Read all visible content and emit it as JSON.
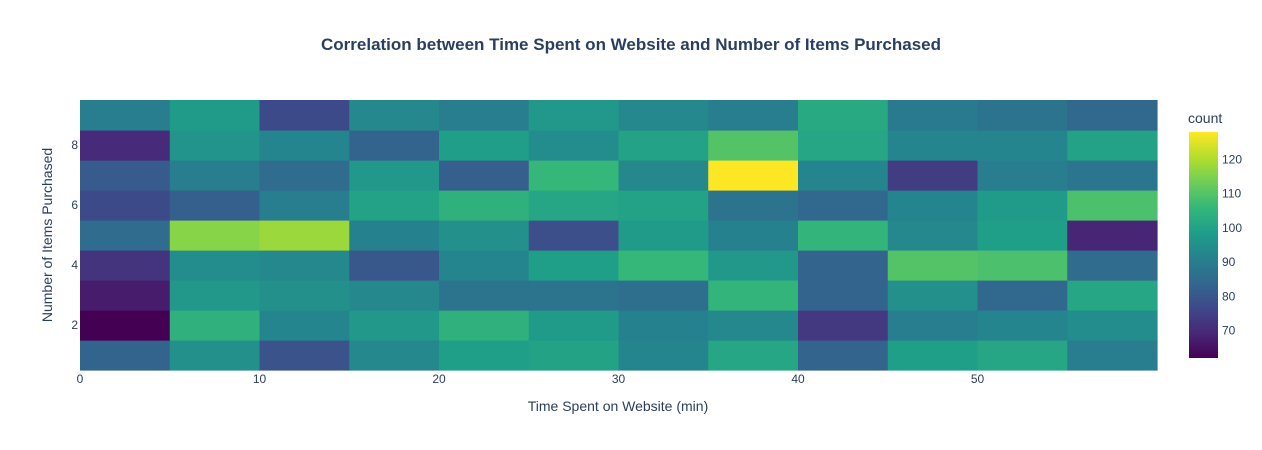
{
  "chart_data": {
    "type": "heatmap",
    "title": "Correlation between Time Spent on Website and Number of Items Purchased",
    "xlabel": "Time Spent on Website (min)",
    "ylabel": "Number of Items Purchased",
    "x_bin_edges": [
      0,
      5,
      10,
      15,
      20,
      25,
      30,
      35,
      40,
      45,
      50,
      55,
      60
    ],
    "y_bin_edges": [
      0,
      1,
      2,
      3,
      4,
      5,
      6,
      7,
      8,
      9
    ],
    "xlim": [
      0,
      60
    ],
    "ylim": [
      0,
      9
    ],
    "x_ticks": [
      0,
      10,
      20,
      30,
      40,
      50
    ],
    "y_ticks": [
      2,
      4,
      6,
      8
    ],
    "values": [
      [
        83,
        95,
        79,
        93,
        99,
        100,
        92,
        101,
        83,
        99,
        101,
        90
      ],
      [
        62,
        104,
        92,
        97,
        104,
        98,
        91,
        93,
        73,
        90,
        92,
        94
      ],
      [
        67,
        97,
        95,
        93,
        87,
        87,
        86,
        105,
        83,
        95,
        84,
        101
      ],
      [
        72,
        94,
        93,
        80,
        92,
        99,
        106,
        97,
        83,
        110,
        109,
        85
      ],
      [
        85,
        116,
        118,
        91,
        95,
        78,
        98,
        91,
        105,
        93,
        99,
        69
      ],
      [
        77,
        82,
        90,
        100,
        104,
        101,
        100,
        87,
        84,
        92,
        98,
        109
      ],
      [
        81,
        90,
        85,
        97,
        82,
        106,
        93,
        128,
        92,
        74,
        90,
        88
      ],
      [
        70,
        96,
        92,
        83,
        99,
        94,
        100,
        110,
        101,
        92,
        92,
        100
      ],
      [
        90,
        98,
        77,
        93,
        90,
        97,
        93,
        90,
        102,
        89,
        87,
        84
      ]
    ],
    "colorscale": "viridis",
    "colorbar": {
      "title": "count",
      "range": [
        62,
        128
      ],
      "ticks": [
        70,
        80,
        90,
        100,
        110,
        120
      ]
    },
    "grid": false,
    "legend": "right"
  }
}
